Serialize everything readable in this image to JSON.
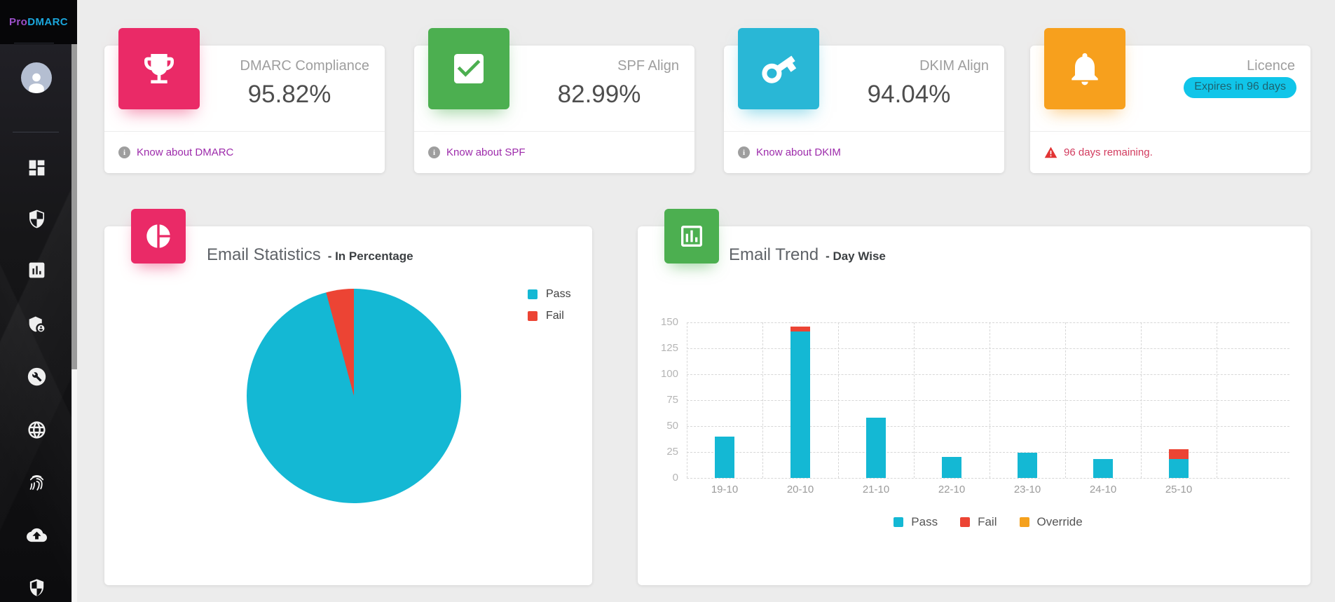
{
  "logo": {
    "pro": "Pro",
    "dmarc": "DMARC"
  },
  "colors": {
    "pass_cyan": "#14b8d4",
    "fail_red": "#ec4434",
    "override_orange": "#f5a11d",
    "pink": "#ea2a67",
    "green": "#4caf50",
    "cyan_box": "#29b7d6",
    "orange_box": "#f7a01d",
    "link_purple": "#9d2bab",
    "badge_bg": "#10c5e9",
    "warning_red": "#d23b5e"
  },
  "sidebar": {
    "items": [
      "dashboard",
      "shield",
      "reports",
      "user-shield",
      "tools",
      "domains",
      "forensics",
      "cloud-upload",
      "security"
    ]
  },
  "cards": {
    "dmarc": {
      "title": "DMARC Compliance",
      "value": "95.82%",
      "link": "Know about DMARC"
    },
    "spf": {
      "title": "SPF Align",
      "value": "82.99%",
      "link": "Know about SPF"
    },
    "dkim": {
      "title": "DKIM Align",
      "value": "94.04%",
      "link": "Know about DKIM"
    },
    "licence": {
      "title": "Licence",
      "badge": "Expires in 96 days",
      "warning": "96 days remaining."
    }
  },
  "sections": {
    "statistics": {
      "title": "Email Statistics",
      "subtitle": "- In Percentage"
    },
    "trend": {
      "title": "Email Trend",
      "subtitle": "- Day Wise"
    }
  },
  "chart_data": [
    {
      "type": "pie",
      "title": "Email Statistics - In Percentage",
      "labels": [
        "Pass",
        "Fail"
      ],
      "values": [
        95.82,
        4.18
      ],
      "colors": [
        "#14b8d4",
        "#ec4434"
      ],
      "legend_position": "top-right",
      "start_angle": "top, clockwise; Fail slice ends at 12 o'clock"
    },
    {
      "type": "bar",
      "stacked": true,
      "title": "Email Trend - Day Wise",
      "categories": [
        "19-10",
        "20-10",
        "21-10",
        "22-10",
        "23-10",
        "24-10",
        "25-10"
      ],
      "series": [
        {
          "name": "Pass",
          "color": "#14b8d4",
          "values": [
            40,
            141,
            58,
            20,
            24,
            18,
            18
          ]
        },
        {
          "name": "Fail",
          "color": "#ec4434",
          "values": [
            0,
            5,
            0,
            0,
            0,
            0,
            10
          ]
        },
        {
          "name": "Override",
          "color": "#f5a11d",
          "values": [
            0,
            0,
            0,
            0,
            0,
            0,
            0
          ]
        }
      ],
      "ylabel": "",
      "xlabel": "",
      "ylim": [
        0,
        150
      ],
      "yticks": [
        150,
        125,
        100,
        75,
        50,
        25,
        0
      ],
      "grid": "dashed",
      "legend_position": "bottom"
    }
  ]
}
